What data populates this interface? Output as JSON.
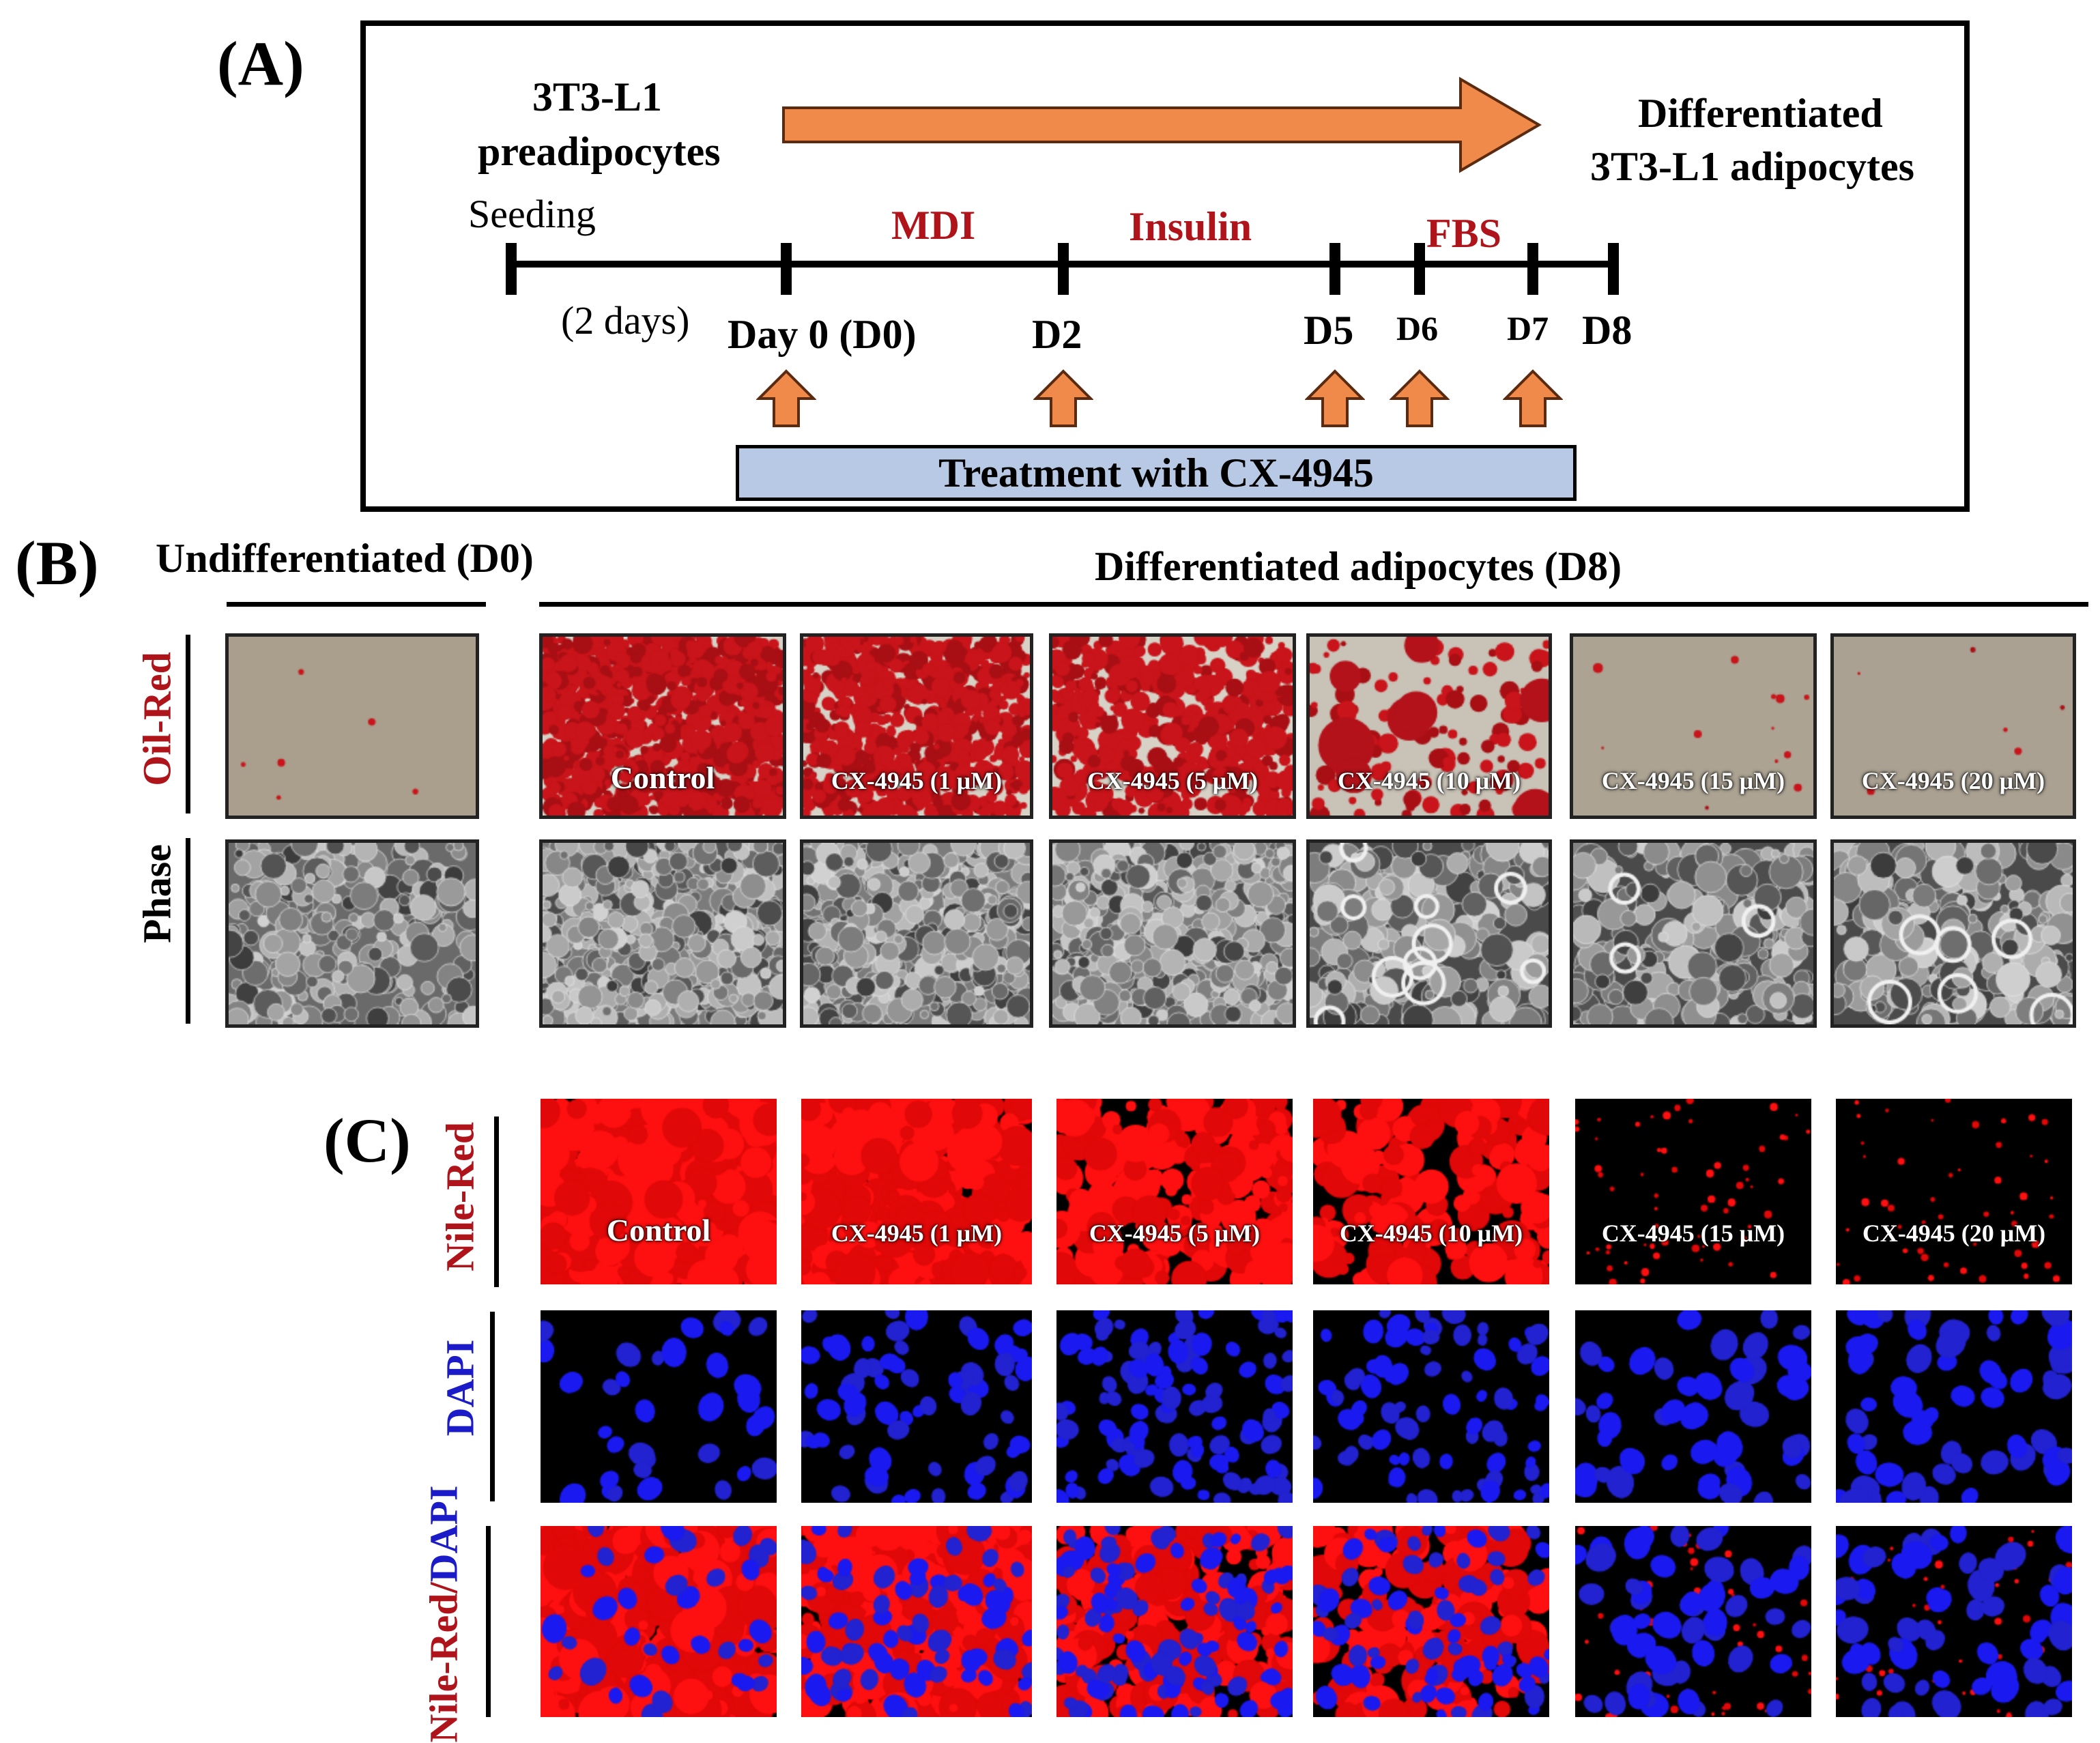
{
  "panel_a": {
    "label": "(A)",
    "start_cells_line1": "3T3-L1",
    "start_cells_line2": "preadipocytes",
    "end_cells_line1": "Differentiated",
    "end_cells_line2": "3T3-L1 adipocytes",
    "seeding": "Seeding",
    "seeding_duration": "(2 days)",
    "phases": [
      "MDI",
      "Insulin",
      "FBS"
    ],
    "days": [
      "Day 0 (D0)",
      "D2",
      "D5",
      "D6",
      "D7",
      "D8"
    ],
    "treatment": "Treatment with CX-4945",
    "colors": {
      "arrow": "#f08a4b",
      "arrow_border": "#5a2b10",
      "treatment_bar": "#b8c9e6",
      "phase_text": "#b0141b"
    }
  },
  "panel_b": {
    "label": "(B)",
    "undiff_title": "Undifferentiated (D0)",
    "diff_title": "Differentiated adipocytes (D8)",
    "rows": [
      "Oil-Red",
      "Phase"
    ],
    "conditions": [
      "Control",
      "CX-4945 (1 μM)",
      "CX-4945 (5 μM)",
      "CX-4945 (10 μM)",
      "CX-4945 (15 μM)",
      "CX-4945 (20 μM)"
    ]
  },
  "panel_c": {
    "label": "(C)",
    "rows": [
      "Nile-Red",
      "DAPI"
    ],
    "merge_row_part1": "Nile-Red/",
    "merge_row_part2": "DAPI",
    "conditions": [
      "Control",
      "CX-4945 (1 μM)",
      "CX-4945 (5 μM)",
      "CX-4945 (10 μM)",
      "CX-4945 (15 μM)",
      "CX-4945 (20 μM)"
    ]
  }
}
